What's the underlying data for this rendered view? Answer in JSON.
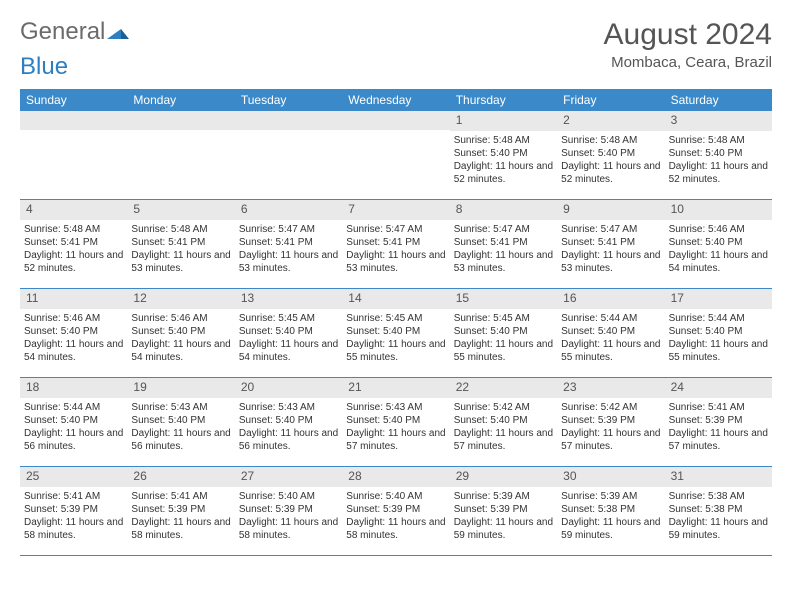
{
  "logo": {
    "text1": "General",
    "text2": "Blue"
  },
  "title": "August 2024",
  "location": "Mombaca, Ceara, Brazil",
  "colors": {
    "header_bg": "#3b89c9",
    "header_text": "#ffffff",
    "daynum_bg": "#e9e9e9",
    "text": "#333333",
    "border": "#3b89c9",
    "page_bg": "#ffffff"
  },
  "typography": {
    "title_fontsize": 30,
    "location_fontsize": 15,
    "dow_fontsize": 12,
    "daynum_fontsize": 12,
    "detail_fontsize": 10
  },
  "dow": [
    "Sunday",
    "Monday",
    "Tuesday",
    "Wednesday",
    "Thursday",
    "Friday",
    "Saturday"
  ],
  "weeks": [
    [
      {
        "n": "",
        "sr": "",
        "ss": "",
        "dl": ""
      },
      {
        "n": "",
        "sr": "",
        "ss": "",
        "dl": ""
      },
      {
        "n": "",
        "sr": "",
        "ss": "",
        "dl": ""
      },
      {
        "n": "",
        "sr": "",
        "ss": "",
        "dl": ""
      },
      {
        "n": "1",
        "sr": "Sunrise: 5:48 AM",
        "ss": "Sunset: 5:40 PM",
        "dl": "Daylight: 11 hours and 52 minutes."
      },
      {
        "n": "2",
        "sr": "Sunrise: 5:48 AM",
        "ss": "Sunset: 5:40 PM",
        "dl": "Daylight: 11 hours and 52 minutes."
      },
      {
        "n": "3",
        "sr": "Sunrise: 5:48 AM",
        "ss": "Sunset: 5:40 PM",
        "dl": "Daylight: 11 hours and 52 minutes."
      }
    ],
    [
      {
        "n": "4",
        "sr": "Sunrise: 5:48 AM",
        "ss": "Sunset: 5:41 PM",
        "dl": "Daylight: 11 hours and 52 minutes."
      },
      {
        "n": "5",
        "sr": "Sunrise: 5:48 AM",
        "ss": "Sunset: 5:41 PM",
        "dl": "Daylight: 11 hours and 53 minutes."
      },
      {
        "n": "6",
        "sr": "Sunrise: 5:47 AM",
        "ss": "Sunset: 5:41 PM",
        "dl": "Daylight: 11 hours and 53 minutes."
      },
      {
        "n": "7",
        "sr": "Sunrise: 5:47 AM",
        "ss": "Sunset: 5:41 PM",
        "dl": "Daylight: 11 hours and 53 minutes."
      },
      {
        "n": "8",
        "sr": "Sunrise: 5:47 AM",
        "ss": "Sunset: 5:41 PM",
        "dl": "Daylight: 11 hours and 53 minutes."
      },
      {
        "n": "9",
        "sr": "Sunrise: 5:47 AM",
        "ss": "Sunset: 5:41 PM",
        "dl": "Daylight: 11 hours and 53 minutes."
      },
      {
        "n": "10",
        "sr": "Sunrise: 5:46 AM",
        "ss": "Sunset: 5:40 PM",
        "dl": "Daylight: 11 hours and 54 minutes."
      }
    ],
    [
      {
        "n": "11",
        "sr": "Sunrise: 5:46 AM",
        "ss": "Sunset: 5:40 PM",
        "dl": "Daylight: 11 hours and 54 minutes."
      },
      {
        "n": "12",
        "sr": "Sunrise: 5:46 AM",
        "ss": "Sunset: 5:40 PM",
        "dl": "Daylight: 11 hours and 54 minutes."
      },
      {
        "n": "13",
        "sr": "Sunrise: 5:45 AM",
        "ss": "Sunset: 5:40 PM",
        "dl": "Daylight: 11 hours and 54 minutes."
      },
      {
        "n": "14",
        "sr": "Sunrise: 5:45 AM",
        "ss": "Sunset: 5:40 PM",
        "dl": "Daylight: 11 hours and 55 minutes."
      },
      {
        "n": "15",
        "sr": "Sunrise: 5:45 AM",
        "ss": "Sunset: 5:40 PM",
        "dl": "Daylight: 11 hours and 55 minutes."
      },
      {
        "n": "16",
        "sr": "Sunrise: 5:44 AM",
        "ss": "Sunset: 5:40 PM",
        "dl": "Daylight: 11 hours and 55 minutes."
      },
      {
        "n": "17",
        "sr": "Sunrise: 5:44 AM",
        "ss": "Sunset: 5:40 PM",
        "dl": "Daylight: 11 hours and 55 minutes."
      }
    ],
    [
      {
        "n": "18",
        "sr": "Sunrise: 5:44 AM",
        "ss": "Sunset: 5:40 PM",
        "dl": "Daylight: 11 hours and 56 minutes."
      },
      {
        "n": "19",
        "sr": "Sunrise: 5:43 AM",
        "ss": "Sunset: 5:40 PM",
        "dl": "Daylight: 11 hours and 56 minutes."
      },
      {
        "n": "20",
        "sr": "Sunrise: 5:43 AM",
        "ss": "Sunset: 5:40 PM",
        "dl": "Daylight: 11 hours and 56 minutes."
      },
      {
        "n": "21",
        "sr": "Sunrise: 5:43 AM",
        "ss": "Sunset: 5:40 PM",
        "dl": "Daylight: 11 hours and 57 minutes."
      },
      {
        "n": "22",
        "sr": "Sunrise: 5:42 AM",
        "ss": "Sunset: 5:40 PM",
        "dl": "Daylight: 11 hours and 57 minutes."
      },
      {
        "n": "23",
        "sr": "Sunrise: 5:42 AM",
        "ss": "Sunset: 5:39 PM",
        "dl": "Daylight: 11 hours and 57 minutes."
      },
      {
        "n": "24",
        "sr": "Sunrise: 5:41 AM",
        "ss": "Sunset: 5:39 PM",
        "dl": "Daylight: 11 hours and 57 minutes."
      }
    ],
    [
      {
        "n": "25",
        "sr": "Sunrise: 5:41 AM",
        "ss": "Sunset: 5:39 PM",
        "dl": "Daylight: 11 hours and 58 minutes."
      },
      {
        "n": "26",
        "sr": "Sunrise: 5:41 AM",
        "ss": "Sunset: 5:39 PM",
        "dl": "Daylight: 11 hours and 58 minutes."
      },
      {
        "n": "27",
        "sr": "Sunrise: 5:40 AM",
        "ss": "Sunset: 5:39 PM",
        "dl": "Daylight: 11 hours and 58 minutes."
      },
      {
        "n": "28",
        "sr": "Sunrise: 5:40 AM",
        "ss": "Sunset: 5:39 PM",
        "dl": "Daylight: 11 hours and 58 minutes."
      },
      {
        "n": "29",
        "sr": "Sunrise: 5:39 AM",
        "ss": "Sunset: 5:39 PM",
        "dl": "Daylight: 11 hours and 59 minutes."
      },
      {
        "n": "30",
        "sr": "Sunrise: 5:39 AM",
        "ss": "Sunset: 5:38 PM",
        "dl": "Daylight: 11 hours and 59 minutes."
      },
      {
        "n": "31",
        "sr": "Sunrise: 5:38 AM",
        "ss": "Sunset: 5:38 PM",
        "dl": "Daylight: 11 hours and 59 minutes."
      }
    ]
  ]
}
